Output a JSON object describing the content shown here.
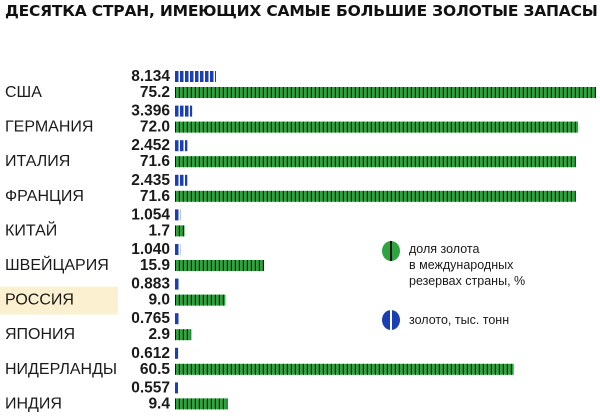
{
  "title": "ДЕСЯТКА СТРАН, ИМЕЮЩИХ САМЫЕ БОЛЬШИЕ ЗОЛОТЫЕ ЗАПАСЫ",
  "colors": {
    "gold_bar": "#1a3fb5",
    "gold_bar_stripe": "#ffffff",
    "share_bar": "#2ea43f",
    "share_bar_stripe": "#111111",
    "highlight": "#fbf0cf"
  },
  "legend": [
    {
      "label": [
        "доля золота",
        "в международных",
        "резервах страны, %"
      ],
      "series": "share"
    },
    {
      "label": [
        "золото, тыс. тонн"
      ],
      "series": "gold"
    }
  ],
  "chart_data": {
    "type": "bar",
    "title": "ДЕСЯТКА СТРАН, ИМЕЮЩИХ САМЫЕ БОЛЬШИЕ ЗОЛОТЫЕ ЗАПАСЫ",
    "orientation": "horizontal",
    "legend_position": "right",
    "highlighted_category": "РОССИЯ",
    "categories": [
      "США",
      "ГЕРМАНИЯ",
      "ИТАЛИЯ",
      "ФРАНЦИЯ",
      "КИТАЙ",
      "ШВЕЙЦАРИЯ",
      "РОССИЯ",
      "ЯПОНИЯ",
      "НИДЕРЛАНДЫ",
      "ИНДИЯ"
    ],
    "series": [
      {
        "name": "золото, тыс. тонн",
        "key": "gold",
        "values": [
          "8.134",
          "3.396",
          "2.452",
          "2.435",
          "1.054",
          "1.040",
          "0.883",
          "0.765",
          "0.612",
          "0.557"
        ]
      },
      {
        "name": "доля золота в международных резервах страны, %",
        "key": "share",
        "values": [
          "75.2",
          "72.0",
          "71.6",
          "71.6",
          "1.7",
          "15.9",
          "9.0",
          "2.9",
          "60.5",
          "9.4"
        ]
      }
    ]
  }
}
